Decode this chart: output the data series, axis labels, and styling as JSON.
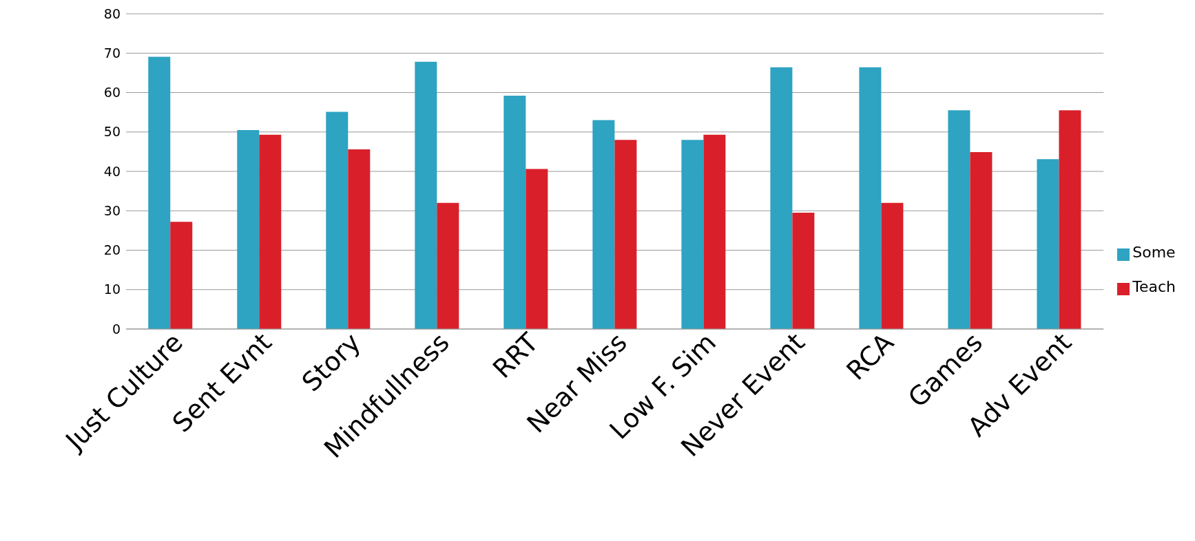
{
  "chart_data": {
    "type": "bar",
    "categories": [
      "Just Culture",
      "Sent Evnt",
      "Story",
      "Mindfullness",
      "RRT",
      "Near Miss",
      "Low F. Sim",
      "Never Event",
      "RCA",
      "Games",
      "Adv Event"
    ],
    "series": [
      {
        "name": "Some",
        "color": "#2ea3c2",
        "values": [
          69.1,
          50.5,
          55.1,
          67.8,
          59.2,
          53.0,
          48.0,
          66.4,
          66.4,
          55.5,
          43.1
        ]
      },
      {
        "name": "Teach",
        "color": "#d9202a",
        "values": [
          27.2,
          49.3,
          45.6,
          32.0,
          40.6,
          48.0,
          49.3,
          29.5,
          32.0,
          44.9,
          55.5
        ]
      }
    ],
    "ylim": [
      0,
      80
    ],
    "yticks": [
      0,
      10,
      20,
      30,
      40,
      50,
      60,
      70,
      80
    ],
    "grid": "y",
    "legend": "right"
  }
}
